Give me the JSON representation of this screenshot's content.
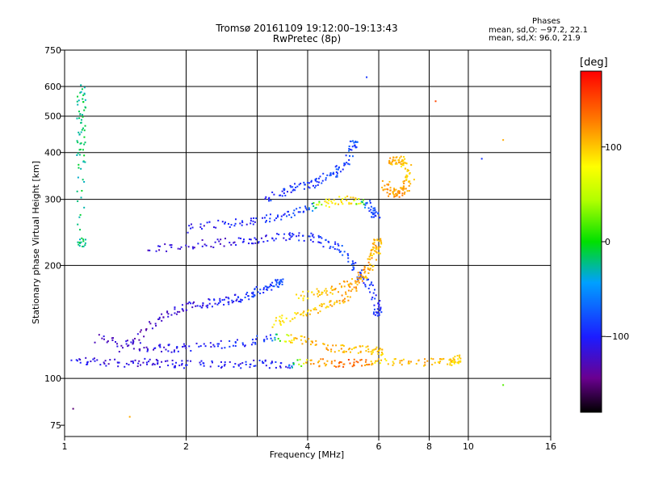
{
  "header": {
    "title_line1": "Tromsø 20161109 19:12:00–19:13:43",
    "title_line2": "RwPretec (8p)"
  },
  "stats": {
    "heading": "Phases",
    "line_o": "mean, sd,O: −97.2, 22.1",
    "line_x": "mean, sd,X:  96.0, 21.9"
  },
  "colorbar": {
    "unit": "[deg]",
    "ticks": [
      {
        "label": "100",
        "value": 100
      },
      {
        "label": "0",
        "value": 0
      },
      {
        "label": "−100",
        "value": -100
      }
    ],
    "range": [
      -180,
      180
    ]
  },
  "chart_data": {
    "type": "scatter",
    "title": "Tromsø 20161109 19:12:00–19:13:43",
    "subtitle": "RwPretec (8p)",
    "xlabel": "Frequency [MHz]",
    "ylabel": "Stationary phase Virtual Height [km]",
    "x_scale": "log",
    "y_scale": "log",
    "xlim": [
      1,
      16
    ],
    "ylim": [
      70,
      750
    ],
    "xticks": [
      {
        "label": "1",
        "value": 1
      },
      {
        "label": "2",
        "value": 2
      },
      {
        "label": "4",
        "value": 4
      },
      {
        "label": "6",
        "value": 6
      },
      {
        "label": "8",
        "value": 8
      },
      {
        "label": "10",
        "value": 10
      },
      {
        "label": "16",
        "value": 16
      }
    ],
    "xgrid": [
      1,
      2,
      3,
      4,
      6,
      8,
      10
    ],
    "yticks": [
      {
        "label": "750",
        "value": 750
      },
      {
        "label": "600",
        "value": 600
      },
      {
        "label": "500",
        "value": 500
      },
      {
        "label": "400",
        "value": 400
      },
      {
        "label": "300",
        "value": 300
      },
      {
        "label": "200",
        "value": 200
      },
      {
        "label": "100",
        "value": 100
      },
      {
        "label": "75",
        "value": 75
      }
    ],
    "ygrid": [
      600,
      500,
      400,
      300,
      200,
      100
    ],
    "grid": true,
    "color_by": "phase [deg]",
    "traces": [
      {
        "x": [
          1.05,
          1.2,
          1.4,
          1.6,
          1.8,
          2.0,
          2.4,
          2.8,
          3.2,
          3.6,
          4.0,
          4.5,
          5.0,
          5.5,
          6.0,
          7.0,
          8.0,
          9.0,
          9.4
        ],
        "y": [
          111,
          111,
          110,
          110,
          109,
          109,
          109,
          109,
          109,
          109,
          110,
          110,
          110,
          110,
          110,
          110,
          110,
          111,
          113
        ],
        "phase": [
          -110,
          -115,
          -118,
          -112,
          -110,
          -108,
          -105,
          -102,
          -100,
          -100,
          110,
          120,
          140,
          130,
          90,
          105,
          110,
          100,
          95
        ]
      },
      {
        "x": [
          1.2,
          1.4,
          1.6,
          1.8,
          2.0,
          2.4,
          2.8,
          3.2,
          3.6,
          4.0,
          4.5,
          5.0,
          5.5,
          6.0
        ],
        "y": [
          128,
          123,
          121,
          120,
          121,
          123,
          125,
          128,
          128,
          126,
          121,
          120,
          119,
          118
        ],
        "phase": [
          -120,
          -118,
          -116,
          -112,
          -108,
          -100,
          -95,
          -90,
          100,
          105,
          110,
          110,
          100,
          100
        ]
      },
      {
        "x": [
          1.4,
          1.6,
          1.8,
          2.0,
          2.2,
          2.4,
          2.6,
          2.8,
          3.0,
          3.2,
          3.4
        ],
        "y": [
          120,
          137,
          148,
          155,
          158,
          160,
          162,
          165,
          170,
          175,
          180
        ],
        "phase": [
          -130,
          -125,
          -120,
          -115,
          -110,
          -105,
          -100,
          -95,
          -90,
          -85,
          -80
        ]
      },
      {
        "x": [
          1.6,
          2.0,
          2.4,
          2.8,
          3.2,
          3.6,
          4.0,
          4.4,
          4.8,
          5.2,
          5.5,
          5.8,
          5.95
        ],
        "y": [
          220,
          226,
          230,
          232,
          236,
          240,
          238,
          232,
          220,
          200,
          185,
          170,
          150
        ],
        "phase": [
          -120,
          -118,
          -115,
          -110,
          -105,
          -100,
          -95,
          -90,
          -85,
          -85,
          -90,
          -95,
          -95
        ]
      },
      {
        "x": [
          2.0,
          2.4,
          2.8,
          3.2,
          3.6,
          4.0,
          4.4,
          4.8,
          5.2,
          5.6,
          5.9
        ],
        "y": [
          250,
          257,
          262,
          268,
          275,
          285,
          292,
          298,
          300,
          290,
          275
        ],
        "phase": [
          -110,
          -105,
          -100,
          -95,
          -90,
          -85,
          85,
          90,
          95,
          -80,
          -85
        ]
      },
      {
        "x": [
          3.8,
          4.2,
          4.6,
          5.0,
          5.4,
          5.7,
          5.95
        ],
        "y": [
          165,
          168,
          172,
          178,
          185,
          200,
          230
        ],
        "phase": [
          95,
          100,
          105,
          110,
          115,
          120,
          110
        ]
      },
      {
        "x": [
          3.3,
          3.6,
          4.0,
          4.4,
          4.8,
          5.2,
          5.6,
          5.9
        ],
        "y": [
          140,
          145,
          150,
          155,
          160,
          170,
          190,
          220
        ],
        "phase": [
          90,
          95,
          100,
          105,
          110,
          115,
          105,
          100
        ]
      },
      {
        "x": [
          6.2,
          6.4,
          6.6,
          6.8,
          7.0,
          7.2,
          7.0,
          6.8,
          6.5
        ],
        "y": [
          330,
          315,
          310,
          314,
          325,
          345,
          370,
          385,
          380
        ],
        "phase": [
          110,
          115,
          118,
          120,
          112,
          100,
          95,
          105,
          110
        ]
      },
      {
        "x": [
          3.2,
          3.5,
          3.8,
          4.1,
          4.4,
          4.7,
          5.0,
          5.2
        ],
        "y": [
          300,
          315,
          325,
          330,
          340,
          355,
          370,
          420
        ],
        "phase": [
          -95,
          -95,
          -92,
          -90,
          -88,
          -85,
          -85,
          -80
        ]
      },
      {
        "x": [
          1.1,
          1.1,
          1.1,
          1.1,
          1.1,
          1.1
        ],
        "y": [
          600,
          540,
          480,
          420,
          360,
          230
        ],
        "phase": [
          -20,
          -20,
          -15,
          -15,
          -20,
          -20
        ]
      }
    ],
    "notes_points": [
      {
        "x": 10.8,
        "y": 385,
        "phase": -90
      },
      {
        "x": 12.2,
        "y": 432,
        "phase": 110
      },
      {
        "x": 12.2,
        "y": 96,
        "phase": 20
      },
      {
        "x": 1.05,
        "y": 83,
        "phase": -150
      },
      {
        "x": 1.45,
        "y": 79,
        "phase": 110
      },
      {
        "x": 8.3,
        "y": 548,
        "phase": 150
      },
      {
        "x": 5.6,
        "y": 635,
        "phase": -90
      }
    ]
  }
}
